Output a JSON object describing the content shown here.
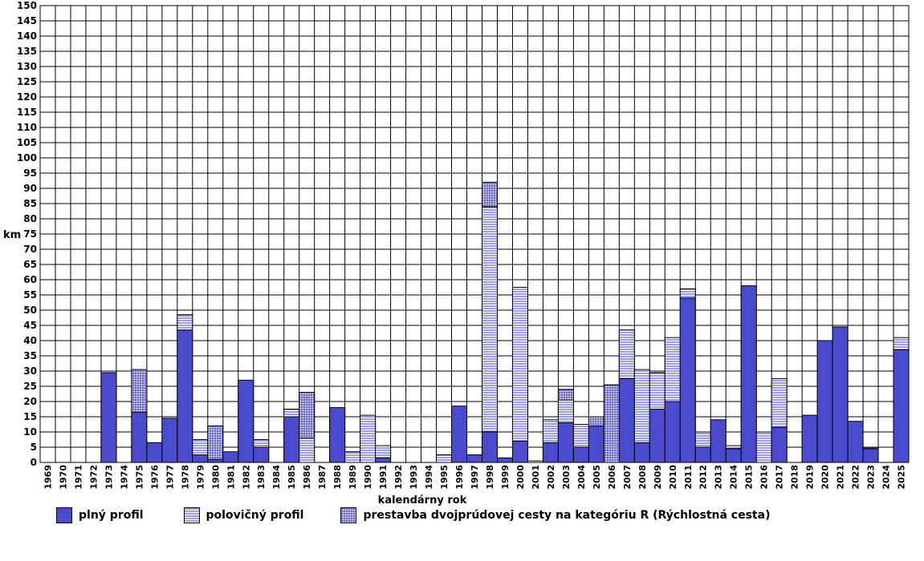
{
  "chart_data": {
    "type": "bar",
    "stacked": true,
    "ylabel": "km",
    "xlabel": "kalendárny rok",
    "ylim": [
      0,
      150
    ],
    "ystep": 5,
    "grid": true,
    "legend_position": "bottom",
    "categories": [
      "1969",
      "1970",
      "1971",
      "1972",
      "1973",
      "1974",
      "1975",
      "1976",
      "1977",
      "1978",
      "1979",
      "1980",
      "1981",
      "1982",
      "1983",
      "1984",
      "1985",
      "1986",
      "1987",
      "1988",
      "1989",
      "1990",
      "1991",
      "1992",
      "1993",
      "1994",
      "1995",
      "1996",
      "1997",
      "1998",
      "1999",
      "2000",
      "2001",
      "2002",
      "2003",
      "2004",
      "2005",
      "2006",
      "2007",
      "2008",
      "2009",
      "2010",
      "2011",
      "2012",
      "2013",
      "2014",
      "2015",
      "2016",
      "2017",
      "2018",
      "2019",
      "2020",
      "2021",
      "2022",
      "2023",
      "2024",
      "2025"
    ],
    "series": [
      {
        "name": "plný profil",
        "pattern": "solid",
        "values": [
          0,
          0,
          0,
          0,
          29.5,
          0,
          16.5,
          6.5,
          14.5,
          43.5,
          2.5,
          1,
          3.5,
          27,
          5,
          0,
          15,
          0,
          0,
          18,
          0,
          0,
          1.5,
          0,
          0,
          0,
          0,
          18.5,
          2.5,
          10,
          1.5,
          7,
          0,
          6.5,
          13,
          5,
          12,
          0,
          27.5,
          6.5,
          17.5,
          20,
          54,
          5,
          14,
          4.5,
          58,
          0,
          11.5,
          0,
          15.5,
          40,
          44.5,
          13.5,
          4.5,
          0,
          37
        ]
      },
      {
        "name": "polovičný profil",
        "pattern": "horizontal",
        "values": [
          0,
          0,
          0,
          0,
          0,
          0,
          0,
          0,
          0,
          5,
          5,
          0,
          0,
          0,
          2.5,
          0,
          2.5,
          8,
          0,
          0,
          3.5,
          15.5,
          4,
          0,
          0,
          0,
          2.5,
          0,
          0,
          74,
          0,
          50.5,
          0.5,
          7.5,
          7.5,
          7.5,
          0,
          0,
          16,
          24,
          12,
          21,
          3,
          5,
          0,
          1,
          0,
          10,
          16,
          0,
          0,
          0,
          0,
          0,
          0.5,
          0,
          4
        ]
      },
      {
        "name": "prestavba dvojprúdovej cesty na kategóriu R (Rýchlostná cesta)",
        "pattern": "grid",
        "values": [
          0,
          0,
          0,
          0,
          0,
          0,
          14,
          0,
          0,
          0,
          0,
          11,
          0,
          0,
          0,
          0,
          0,
          15,
          0,
          0,
          0,
          0,
          0,
          0,
          0,
          0,
          0,
          0,
          0,
          8,
          0,
          0,
          0,
          0,
          3.5,
          0,
          3,
          25.5,
          0,
          0,
          0,
          0,
          0,
          0,
          0,
          0,
          0,
          0,
          0,
          0,
          0,
          0,
          0,
          0,
          0,
          0,
          0
        ]
      }
    ],
    "colors": {
      "fill": "#4a4acd",
      "pattern_line": "#3d3dbf",
      "grid": "#000000",
      "background": "#ffffff"
    }
  }
}
